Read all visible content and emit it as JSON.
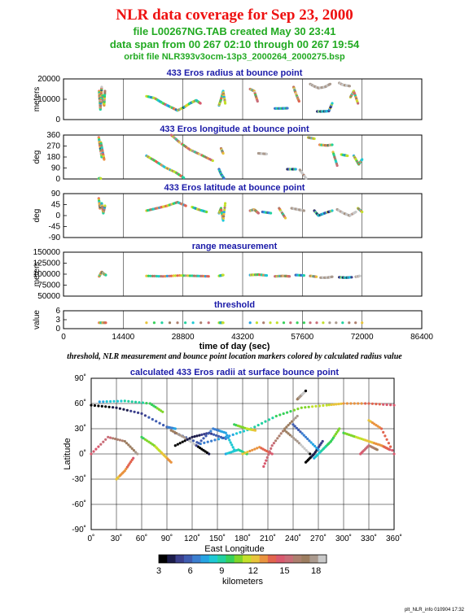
{
  "header": {
    "title": "NLR data coverage for Sep 23, 2000",
    "line1": "file L00267NG.TAB created May 30 23:41",
    "line2": "data span from 00 267 02:10 through 00 267 19:54",
    "line3": "orbit file NLR393v3ocm-13p3_2000264_2000275.bsp"
  },
  "footnote": "threshold, NLR measurement and bounce point location markers colored by calculated radius value",
  "stamp": "plt_NLR_info 010904 17:32",
  "colorbar": {
    "label": "kilometers",
    "ticks": [
      "3",
      "6",
      "9",
      "12",
      "15",
      "18"
    ],
    "range": [
      3,
      19
    ],
    "colors": [
      "#000000",
      "#1c1c4a",
      "#3b3f8c",
      "#3f5cb0",
      "#3c7fd0",
      "#26a4e3",
      "#1ec9d4",
      "#22d1a0",
      "#37d15a",
      "#7fd62a",
      "#c3e02a",
      "#e8c43a",
      "#e9933f",
      "#e2644e",
      "#d9596e",
      "#c96c77",
      "#ad7f6e",
      "#9c7d60",
      "#aa9a8e",
      "#c8c8c8"
    ]
  },
  "chart_data": [
    {
      "type": "scatter",
      "title": "433 Eros radius at bounce point",
      "ylabel": "meters",
      "ylim": [
        0,
        20000
      ],
      "yticks": [
        "0",
        "10000",
        "20000"
      ],
      "xlim": [
        0,
        86400
      ],
      "grid": true,
      "segments": [
        {
          "x": [
            8600,
            8700,
            8800,
            8900,
            9000,
            9100,
            9200
          ],
          "y": [
            14000,
            11000,
            8000,
            5000,
            9000,
            12000,
            16000
          ]
        },
        {
          "x": [
            9400,
            9600,
            9800,
            10000
          ],
          "y": [
            12000,
            9000,
            7000,
            14000
          ]
        },
        {
          "x": [
            20000,
            22000,
            24000,
            26000,
            27500,
            29000,
            30500,
            32000,
            33000
          ],
          "y": [
            11500,
            10500,
            8000,
            6000,
            4500,
            6000,
            8000,
            9500,
            8000
          ]
        },
        {
          "x": [
            37500,
            38000,
            38500,
            39000
          ],
          "y": [
            7000,
            10000,
            14000,
            8000
          ]
        },
        {
          "x": [
            45000,
            46000,
            46800
          ],
          "y": [
            15000,
            14000,
            9000
          ]
        },
        {
          "x": [
            51000,
            52500,
            54000
          ],
          "y": [
            5500,
            5500,
            5600
          ]
        },
        {
          "x": [
            55500,
            56000,
            56800
          ],
          "y": [
            16000,
            13000,
            9000
          ]
        },
        {
          "x": [
            59500,
            60300,
            61500,
            63000,
            64300
          ],
          "y": [
            17500,
            16500,
            15500,
            16000,
            17500
          ]
        },
        {
          "x": [
            61200,
            62500,
            64000,
            64800
          ],
          "y": [
            4000,
            4000,
            4200,
            8000
          ]
        },
        {
          "x": [
            66500,
            67500,
            69000
          ],
          "y": [
            18000,
            17000,
            16500
          ]
        },
        {
          "x": [
            69200,
            70000,
            71000
          ],
          "y": [
            11000,
            14000,
            8000
          ]
        }
      ]
    },
    {
      "type": "scatter",
      "title": "433 Eros longitude at bounce point",
      "ylabel": "deg",
      "ylim": [
        0,
        360
      ],
      "yticks": [
        "0",
        "90",
        "180",
        "270",
        "360"
      ],
      "xlim": [
        0,
        86400
      ],
      "grid": true,
      "segments": [
        {
          "x": [
            8500,
            8800,
            9200
          ],
          "y": [
            340,
            270,
            180
          ]
        },
        {
          "x": [
            9000,
            9400,
            9800
          ],
          "y": [
            300,
            230,
            160
          ]
        },
        {
          "x": [
            8500,
            9000
          ],
          "y": [
            5,
            5
          ]
        },
        {
          "x": [
            20000,
            22000,
            24500,
            27000,
            29000
          ],
          "y": [
            190,
            150,
            95,
            55,
            10
          ]
        },
        {
          "x": [
            26000,
            28000,
            30500,
            33000,
            36000
          ],
          "y": [
            360,
            300,
            240,
            200,
            150
          ]
        },
        {
          "x": [
            37500,
            38000,
            38700
          ],
          "y": [
            80,
            40,
            5
          ]
        },
        {
          "x": [
            38000,
            38500
          ],
          "y": [
            250,
            210
          ]
        },
        {
          "x": [
            47000,
            49000
          ],
          "y": [
            210,
            205
          ]
        },
        {
          "x": [
            54000,
            56000
          ],
          "y": [
            80,
            80
          ]
        },
        {
          "x": [
            57000,
            58500
          ],
          "y": [
            75,
            5
          ]
        },
        {
          "x": [
            59000,
            60500
          ],
          "y": [
            340,
            330
          ]
        },
        {
          "x": [
            61800,
            63500,
            64800
          ],
          "y": [
            280,
            275,
            280
          ]
        },
        {
          "x": [
            65000,
            66000
          ],
          "y": [
            220,
            110
          ]
        },
        {
          "x": [
            67000,
            68500
          ],
          "y": [
            200,
            190
          ]
        },
        {
          "x": [
            70000,
            71200,
            72000
          ],
          "y": [
            190,
            120,
            160
          ]
        }
      ]
    },
    {
      "type": "scatter",
      "title": "433 Eros latitude at bounce point",
      "ylabel": "deg",
      "ylim": [
        -90,
        90
      ],
      "yticks": [
        "-90",
        "-45",
        "0",
        "45",
        "90"
      ],
      "xlim": [
        0,
        86400
      ],
      "grid": true,
      "segments": [
        {
          "x": [
            8500,
            8800,
            9200,
            9600,
            10000
          ],
          "y": [
            70,
            30,
            50,
            10,
            40
          ]
        },
        {
          "x": [
            20000,
            22500,
            25000,
            27500,
            29500
          ],
          "y": [
            20,
            30,
            40,
            55,
            40
          ]
        },
        {
          "x": [
            31000,
            32500,
            34500
          ],
          "y": [
            35,
            25,
            15
          ]
        },
        {
          "x": [
            37500,
            38000,
            38500,
            39000
          ],
          "y": [
            10,
            30,
            -20,
            50
          ]
        },
        {
          "x": [
            45000,
            46000,
            47000
          ],
          "y": [
            20,
            25,
            10
          ]
        },
        {
          "x": [
            48000,
            50000
          ],
          "y": [
            15,
            10
          ]
        },
        {
          "x": [
            52000,
            53500
          ],
          "y": [
            30,
            -10
          ]
        },
        {
          "x": [
            55000,
            56500,
            58000
          ],
          "y": [
            30,
            25,
            20
          ]
        },
        {
          "x": [
            60500,
            61500,
            63000,
            64800
          ],
          "y": [
            20,
            0,
            10,
            20
          ]
        },
        {
          "x": [
            66000,
            67500,
            69000,
            70500
          ],
          "y": [
            25,
            10,
            0,
            15
          ]
        },
        {
          "x": [
            71000,
            72000
          ],
          "y": [
            30,
            15
          ]
        }
      ]
    },
    {
      "type": "scatter",
      "title": "range measurement",
      "ylabel": "meters",
      "ylim": [
        50000,
        150000
      ],
      "yticks": [
        "50000",
        "75000",
        "100000",
        "125000",
        "150000"
      ],
      "xlim": [
        0,
        86400
      ],
      "grid": true,
      "segments": [
        {
          "x": [
            8600,
            9200,
            9800,
            10200
          ],
          "y": [
            95000,
            105000,
            100000,
            98000
          ]
        },
        {
          "x": [
            20000,
            24000,
            28000,
            32000,
            35000
          ],
          "y": [
            96000,
            95000,
            97000,
            96000,
            95000
          ]
        },
        {
          "x": [
            37500,
            38500
          ],
          "y": [
            96000,
            98000
          ]
        },
        {
          "x": [
            45000,
            47000,
            49000
          ],
          "y": [
            98000,
            99000,
            97000
          ]
        },
        {
          "x": [
            51000,
            53000,
            54500
          ],
          "y": [
            95000,
            96000,
            95000
          ]
        },
        {
          "x": [
            56000,
            58000
          ],
          "y": [
            98000,
            97000
          ]
        },
        {
          "x": [
            59500,
            61000
          ],
          "y": [
            96000,
            94000
          ]
        },
        {
          "x": [
            62000,
            63500,
            64800
          ],
          "y": [
            92000,
            92000,
            94000
          ]
        },
        {
          "x": [
            66500,
            68000,
            69500
          ],
          "y": [
            93000,
            92000,
            93000
          ]
        },
        {
          "x": [
            70500,
            71500
          ],
          "y": [
            94000,
            96000
          ]
        }
      ]
    },
    {
      "type": "scatter",
      "title": "threshold",
      "ylabel": "value",
      "ylim": [
        0,
        6
      ],
      "yticks": [
        "0",
        "3",
        "6"
      ],
      "xlim": [
        0,
        86400
      ],
      "xticks": [
        "0",
        "14400",
        "28800",
        "43200",
        "57600",
        "72000",
        "86400"
      ],
      "xlabel": "time of day (sec)",
      "grid": true,
      "segments": [
        {
          "x": [
            8600,
            10200
          ],
          "y": [
            2,
            2
          ]
        },
        {
          "x": [
            20000,
            35000
          ],
          "y": [
            2,
            2
          ]
        },
        {
          "x": [
            37500,
            38500
          ],
          "y": [
            2,
            2
          ]
        },
        {
          "x": [
            45000,
            58000
          ],
          "y": [
            2,
            2
          ]
        },
        {
          "x": [
            59500,
            72000
          ],
          "y": [
            2,
            2
          ]
        }
      ]
    },
    {
      "type": "scatter",
      "title": "calculated 433 Eros radii at surface bounce point",
      "xlabel": "East Longitude",
      "ylabel": "Latitude",
      "xlim": [
        0,
        360
      ],
      "ylim": [
        -90,
        90
      ],
      "xticks": [
        "0˚",
        "30˚",
        "60˚",
        "90˚",
        "120˚",
        "150˚",
        "180˚",
        "210˚",
        "240˚",
        "270˚",
        "300˚",
        "330˚",
        "360˚"
      ],
      "yticks": [
        "-90˚",
        "-60˚",
        "-30˚",
        "0˚",
        "30˚",
        "60˚",
        "90˚"
      ],
      "grid": true,
      "tracks": [
        {
          "x": [
            0,
            30,
            60,
            90,
            100
          ],
          "y": [
            58,
            55,
            48,
            32,
            30
          ]
        },
        {
          "x": [
            100,
            130,
            160,
            190,
            220,
            250,
            280,
            300,
            330,
            360
          ],
          "y": [
            25,
            12,
            20,
            30,
            45,
            55,
            58,
            60,
            60,
            58
          ]
        },
        {
          "x": [
            10,
            40,
            70,
            85
          ],
          "y": [
            62,
            63,
            60,
            50
          ]
        },
        {
          "x": [
            60,
            75,
            85,
            95
          ],
          "y": [
            20,
            10,
            0,
            -10
          ]
        },
        {
          "x": [
            30,
            40,
            50
          ],
          "y": [
            -30,
            -20,
            -5
          ]
        },
        {
          "x": [
            0,
            20,
            40,
            55
          ],
          "y": [
            0,
            20,
            15,
            0
          ]
        },
        {
          "x": [
            95,
            110,
            125,
            140
          ],
          "y": [
            28,
            20,
            10,
            0
          ]
        },
        {
          "x": [
            100,
            120,
            140,
            160
          ],
          "y": [
            10,
            20,
            25,
            18
          ]
        },
        {
          "x": [
            125,
            145,
            160,
            170
          ],
          "y": [
            10,
            30,
            25,
            5
          ]
        },
        {
          "x": [
            160,
            175,
            185
          ],
          "y": [
            0,
            5,
            0
          ]
        },
        {
          "x": [
            170,
            185,
            195
          ],
          "y": [
            35,
            30,
            28
          ]
        },
        {
          "x": [
            180,
            200,
            215
          ],
          "y": [
            0,
            8,
            0
          ]
        },
        {
          "x": [
            205,
            215,
            230,
            245
          ],
          "y": [
            -15,
            10,
            30,
            45
          ]
        },
        {
          "x": [
            230,
            245,
            260
          ],
          "y": [
            28,
            15,
            0
          ]
        },
        {
          "x": [
            255,
            265,
            275
          ],
          "y": [
            -10,
            0,
            15
          ]
        },
        {
          "x": [
            240,
            255,
            270
          ],
          "y": [
            35,
            20,
            5
          ]
        },
        {
          "x": [
            265,
            275,
            285,
            295
          ],
          "y": [
            -5,
            5,
            15,
            30
          ]
        },
        {
          "x": [
            300,
            315,
            330,
            345,
            355
          ],
          "y": [
            25,
            20,
            15,
            10,
            5
          ]
        },
        {
          "x": [
            330,
            345,
            360
          ],
          "y": [
            40,
            30,
            0
          ]
        },
        {
          "x": [
            320,
            330,
            340
          ],
          "y": [
            0,
            10,
            5
          ]
        },
        {
          "x": [
            245,
            250,
            255
          ],
          "y": [
            65,
            70,
            75
          ]
        }
      ]
    }
  ]
}
